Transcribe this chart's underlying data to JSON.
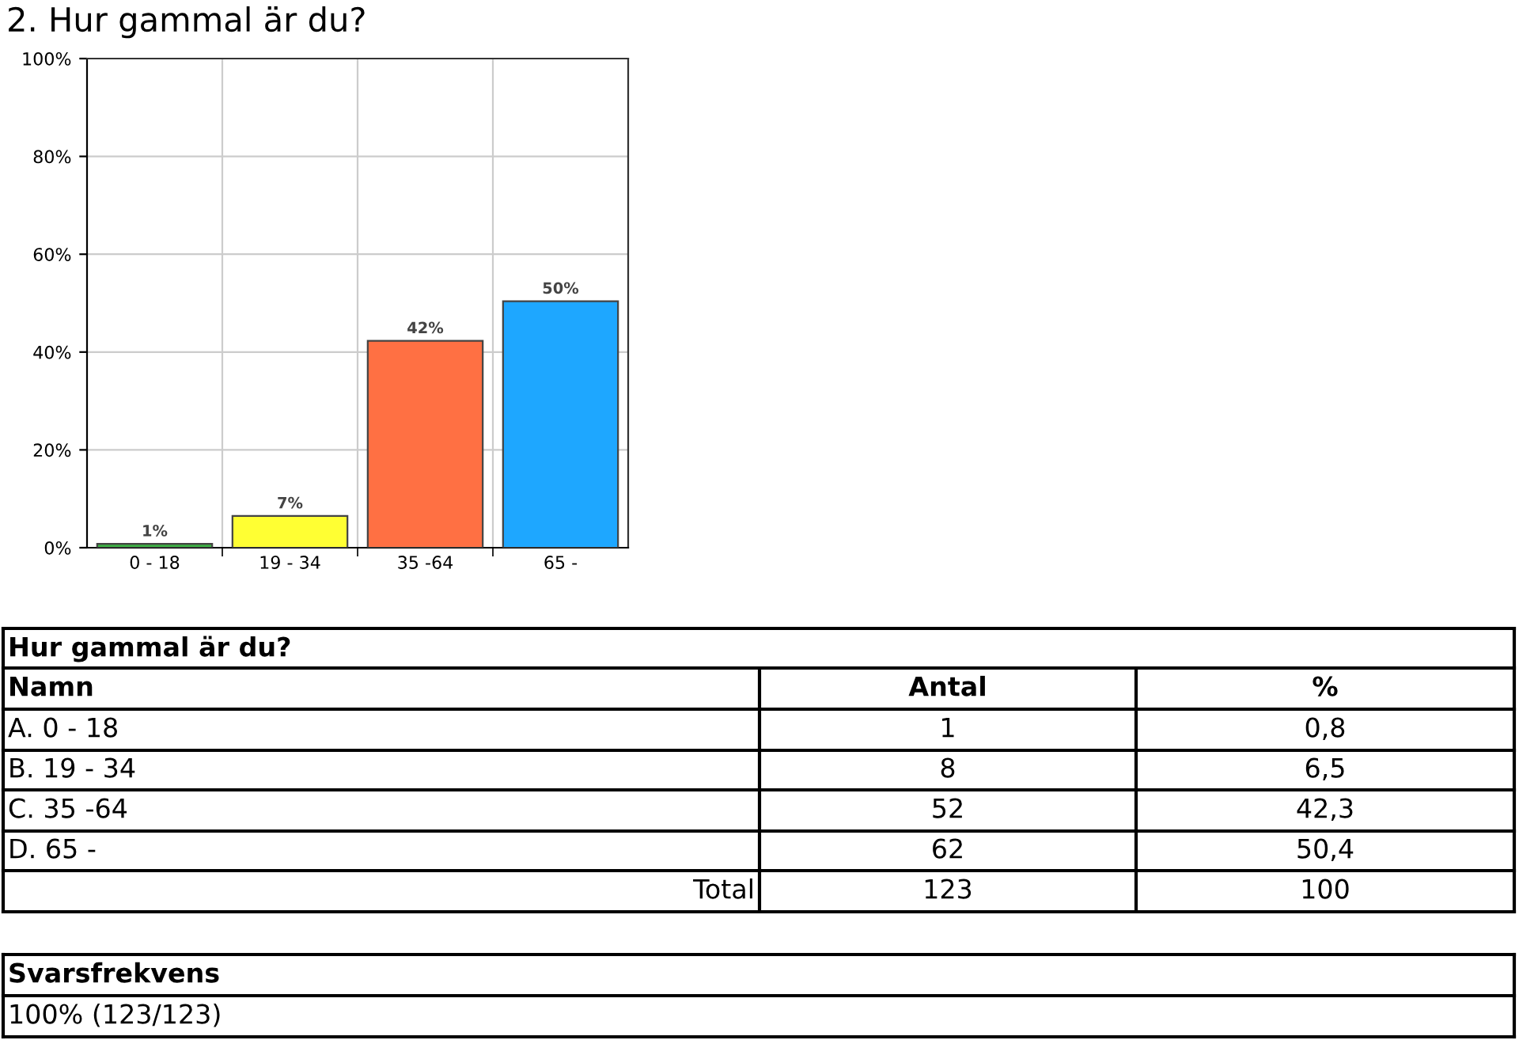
{
  "chart_data": {
    "type": "bar",
    "title": "2. Hur gammal är du?",
    "categories": [
      "0 - 18",
      "19 - 34",
      "35 -64",
      "65 -"
    ],
    "values": [
      0.8,
      6.5,
      42.3,
      50.4
    ],
    "colors": [
      "#3cb043",
      "#ffff33",
      "#ff7043",
      "#1ea7ff"
    ],
    "value_labels": [
      "1%",
      "7%",
      "42%",
      "50%"
    ],
    "ylim": [
      0,
      100
    ],
    "yticks": [
      {
        "value": 0,
        "label": "0%"
      },
      {
        "value": 20,
        "label": "20%"
      },
      {
        "value": 40,
        "label": "40%"
      },
      {
        "value": 60,
        "label": "60%"
      },
      {
        "value": 80,
        "label": "80%"
      },
      {
        "value": 100,
        "label": "100%"
      }
    ],
    "grid": true,
    "annotations": [
      "Hur gammal är du?",
      "Namn",
      "Antal",
      "%",
      "A. 0 - 18",
      "1",
      "0,8",
      "B. 19 - 34",
      "8",
      "6,5",
      "C. 35 -64",
      "52",
      "42,3",
      "D. 65 -",
      "62",
      "50,4",
      "Total",
      "123",
      "100",
      "Svarsfrekvens",
      "100% (123/123)"
    ]
  }
}
